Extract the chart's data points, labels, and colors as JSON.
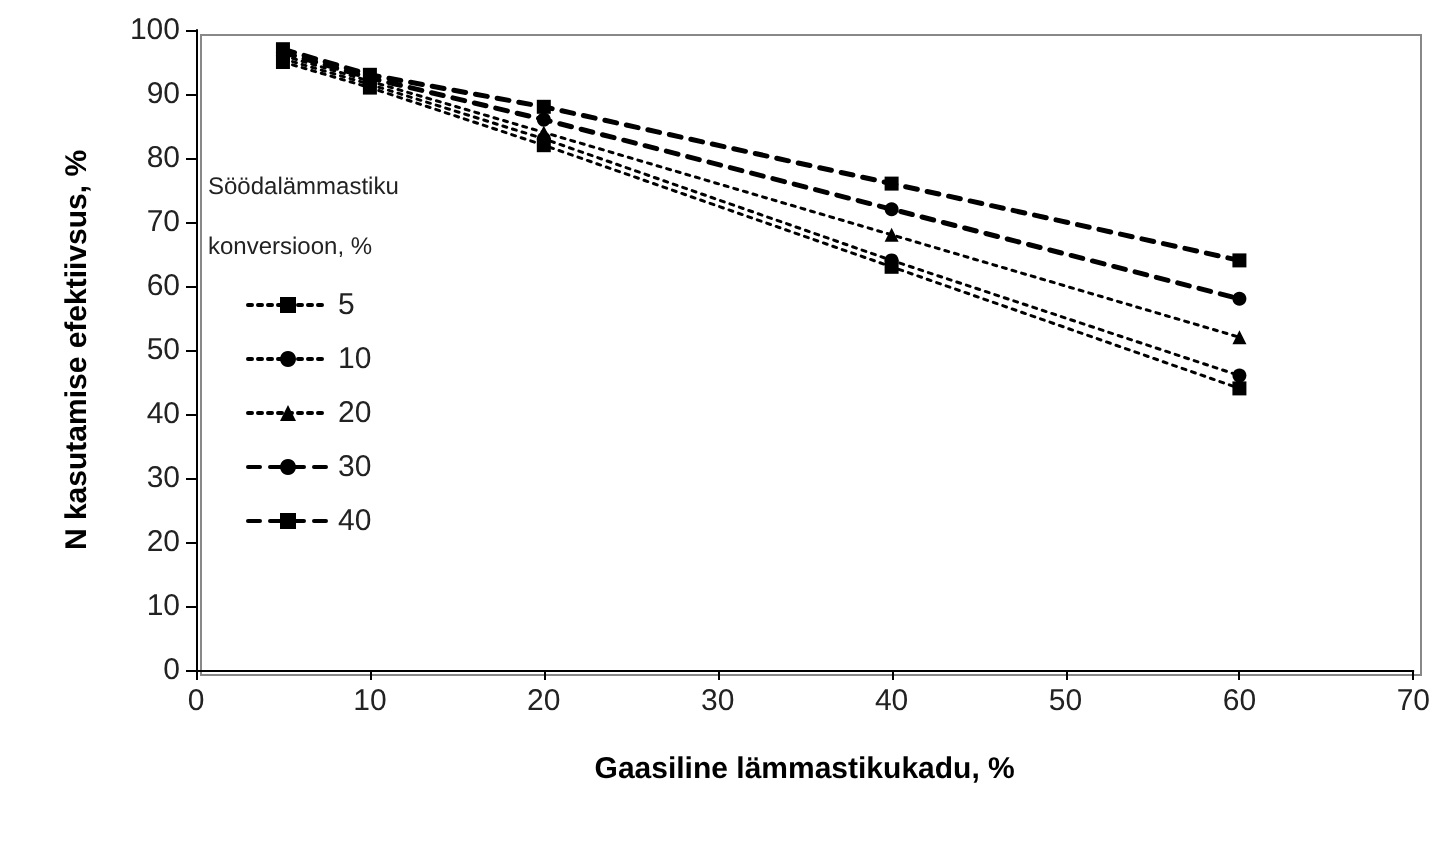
{
  "chart_data": {
    "type": "line",
    "xlabel": "Gaasiline lämmastikukadu, %",
    "ylabel": "N kasutamise efektiivsus, %",
    "legend_title": "Söödalämmastiku konversioon, %",
    "x": [
      5,
      10,
      20,
      40,
      60
    ],
    "series": [
      {
        "name": "5",
        "color": "#000000",
        "marker": "square",
        "line_style": "dotted",
        "values": [
          95,
          91,
          82,
          63,
          44
        ]
      },
      {
        "name": "10",
        "color": "#000000",
        "marker": "circle",
        "line_style": "dotted",
        "values": [
          95.5,
          91.5,
          83,
          64,
          46
        ]
      },
      {
        "name": "20",
        "color": "#000000",
        "marker": "triangle",
        "line_style": "dotted",
        "values": [
          96,
          92,
          84,
          68,
          52
        ]
      },
      {
        "name": "30",
        "color": "#000000",
        "marker": "circle",
        "line_style": "dashed",
        "values": [
          96.5,
          92.5,
          86,
          72,
          58
        ]
      },
      {
        "name": "40",
        "color": "#000000",
        "marker": "square",
        "line_style": "dashed",
        "values": [
          97,
          93,
          88,
          76,
          64
        ]
      }
    ],
    "xlim": [
      0,
      70
    ],
    "xticks": [
      0,
      10,
      20,
      30,
      40,
      50,
      60,
      70
    ],
    "ylim": [
      0,
      100
    ],
    "yticks": [
      0,
      10,
      20,
      30,
      40,
      50,
      60,
      70,
      80,
      90,
      100
    ],
    "grid": false,
    "legend": "left"
  }
}
